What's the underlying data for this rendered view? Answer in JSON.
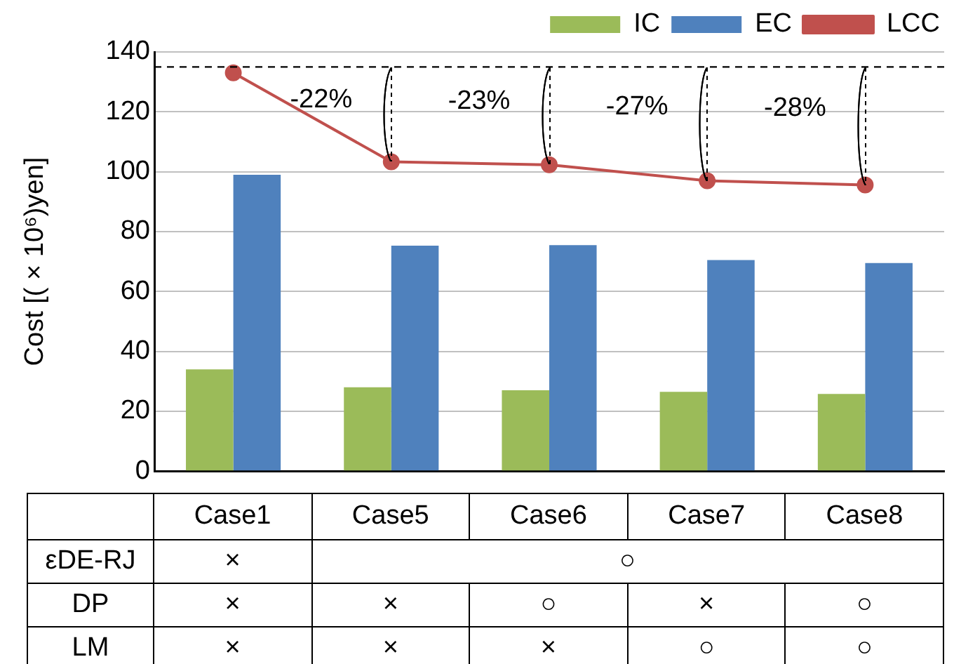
{
  "chart_data": {
    "type": "bar",
    "ylabel": "Cost [( × 10⁶)yen]",
    "categories": [
      "Case1",
      "Case5",
      "Case6",
      "Case7",
      "Case8"
    ],
    "series": [
      {
        "name": "IC",
        "color": "#9bbb59",
        "values": [
          34,
          28,
          27,
          26.5,
          25.8
        ]
      },
      {
        "name": "EC",
        "color": "#4f81bd",
        "values": [
          99,
          75.3,
          75.5,
          70.5,
          69.5
        ]
      },
      {
        "name": "LCC",
        "type": "line",
        "color": "#c0504d",
        "values": [
          133,
          103.3,
          102.3,
          97,
          95.6
        ]
      }
    ],
    "ylim": [
      0,
      140
    ],
    "yticks": [
      0,
      20,
      40,
      60,
      80,
      100,
      120,
      140
    ],
    "grid": "y",
    "legend": "top right",
    "marker": "circle",
    "ref_lines": [
      {
        "axis": "y",
        "value": 135,
        "color": "#000000",
        "line_style": "dashed"
      }
    ],
    "annotations": [
      {
        "text": "-22%",
        "x": "Case5",
        "y": 103.3
      },
      {
        "text": "-23%",
        "x": "Case6",
        "y": 102.3
      },
      {
        "text": "-27%",
        "x": "Case7",
        "y": 97
      },
      {
        "text": "-28%",
        "x": "Case8",
        "y": 95.6
      },
      "εDE-RJ",
      "×",
      "○",
      "DP",
      "×",
      "×",
      "○",
      "×",
      "○",
      "LM",
      "×",
      "×",
      "×",
      "○",
      "○"
    ]
  }
}
